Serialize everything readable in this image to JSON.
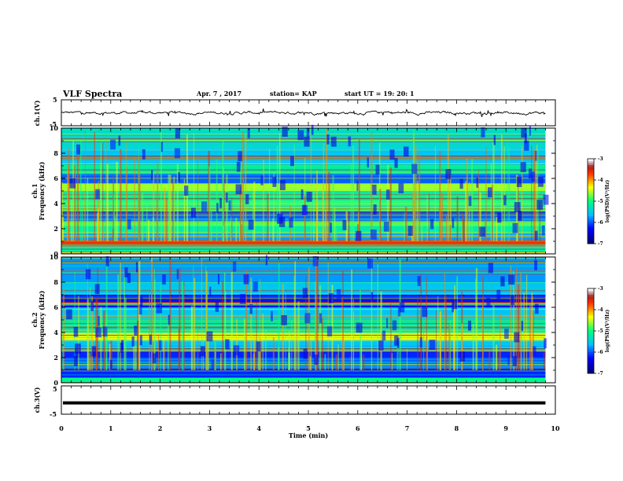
{
  "header": {
    "title": "VLF Spectra",
    "date": "Apr. 7 , 2017",
    "station": "station= KAP",
    "start": "start UT =  19: 20: 1"
  },
  "colors": {
    "waveform": "#000000",
    "colormap": [
      "#00007f",
      "#0000ff",
      "#00bfff",
      "#00ff80",
      "#ffff00",
      "#ff3300",
      "#800000",
      "#ffffff"
    ]
  },
  "chart_data": [
    {
      "type": "line",
      "id": "ch1-waveform",
      "ylabel": "ch.1(V)",
      "ylim": [
        -5,
        5
      ],
      "yticks": [
        "5",
        "-5"
      ],
      "xlim": [
        0,
        10
      ],
      "description_values": {
        "mean_level": 0,
        "amplitude_range": [
          -1.6,
          1.6
        ]
      }
    },
    {
      "type": "heatmap",
      "id": "ch1-spectrogram",
      "ylabel_line1": "ch.1",
      "ylabel_line2": "Frequency (kHz)",
      "ylim": [
        0,
        10
      ],
      "yticks": [
        "0",
        "2",
        "4",
        "6",
        "8",
        "10"
      ],
      "xlim": [
        0,
        9.8
      ],
      "colorbar": {
        "label": "log(PSD)(V²/Hz)",
        "range": [
          -7,
          -3
        ],
        "ticks": [
          "-3",
          "-4",
          "-5",
          "-6",
          "-7"
        ]
      },
      "bands": [
        {
          "from": 0.0,
          "to": 0.6,
          "level": 0.45
        },
        {
          "from": 0.6,
          "to": 1.0,
          "level": 0.85
        },
        {
          "from": 1.0,
          "to": 1.6,
          "level": 0.3
        },
        {
          "from": 1.6,
          "to": 2.2,
          "level": 0.45
        },
        {
          "from": 2.2,
          "to": 2.6,
          "level": 0.55
        },
        {
          "from": 2.6,
          "to": 3.4,
          "level": 0.25
        },
        {
          "from": 3.4,
          "to": 4.2,
          "level": 0.55
        },
        {
          "from": 4.2,
          "to": 5.0,
          "level": 0.45
        },
        {
          "from": 5.0,
          "to": 5.6,
          "level": 0.6
        },
        {
          "from": 5.6,
          "to": 6.4,
          "level": 0.25
        },
        {
          "from": 6.4,
          "to": 7.2,
          "level": 0.45
        },
        {
          "from": 7.2,
          "to": 8.4,
          "level": 0.35
        },
        {
          "from": 8.4,
          "to": 10.0,
          "level": 0.4
        }
      ]
    },
    {
      "type": "heatmap",
      "id": "ch2-spectrogram",
      "ylabel_line1": "ch.2",
      "ylabel_line2": "Frequency (kHz)",
      "ylim": [
        0,
        10
      ],
      "yticks": [
        "0",
        "2",
        "4",
        "6",
        "8",
        "10"
      ],
      "xlim": [
        0,
        9.8
      ],
      "colorbar": {
        "label": "log(PSD)(V²/Hz)",
        "range": [
          -7,
          -3
        ],
        "ticks": [
          "-3",
          "-4",
          "-5",
          "-6",
          "-7"
        ]
      },
      "bands": [
        {
          "from": 0.0,
          "to": 0.4,
          "level": 0.5
        },
        {
          "from": 0.4,
          "to": 1.2,
          "level": 0.2
        },
        {
          "from": 1.2,
          "to": 2.0,
          "level": 0.25
        },
        {
          "from": 2.0,
          "to": 2.6,
          "level": 0.2
        },
        {
          "from": 2.6,
          "to": 3.4,
          "level": 0.35
        },
        {
          "from": 3.4,
          "to": 4.0,
          "level": 0.65
        },
        {
          "from": 4.0,
          "to": 5.0,
          "level": 0.45
        },
        {
          "from": 5.0,
          "to": 6.0,
          "level": 0.35
        },
        {
          "from": 6.0,
          "to": 7.0,
          "level": 0.18
        },
        {
          "from": 7.0,
          "to": 8.0,
          "level": 0.35
        },
        {
          "from": 8.0,
          "to": 10.0,
          "level": 0.3
        }
      ]
    },
    {
      "type": "line",
      "id": "ch3-waveform",
      "ylabel": "ch.3(V)",
      "ylim": [
        -5,
        5
      ],
      "yticks": [
        "5",
        "-5"
      ],
      "xlim": [
        0,
        9.8
      ],
      "constant_value": -1
    }
  ],
  "xaxis": {
    "label": "Time (min)",
    "ticks": [
      "0",
      "1",
      "2",
      "3",
      "4",
      "5",
      "6",
      "7",
      "8",
      "9",
      "10"
    ]
  }
}
